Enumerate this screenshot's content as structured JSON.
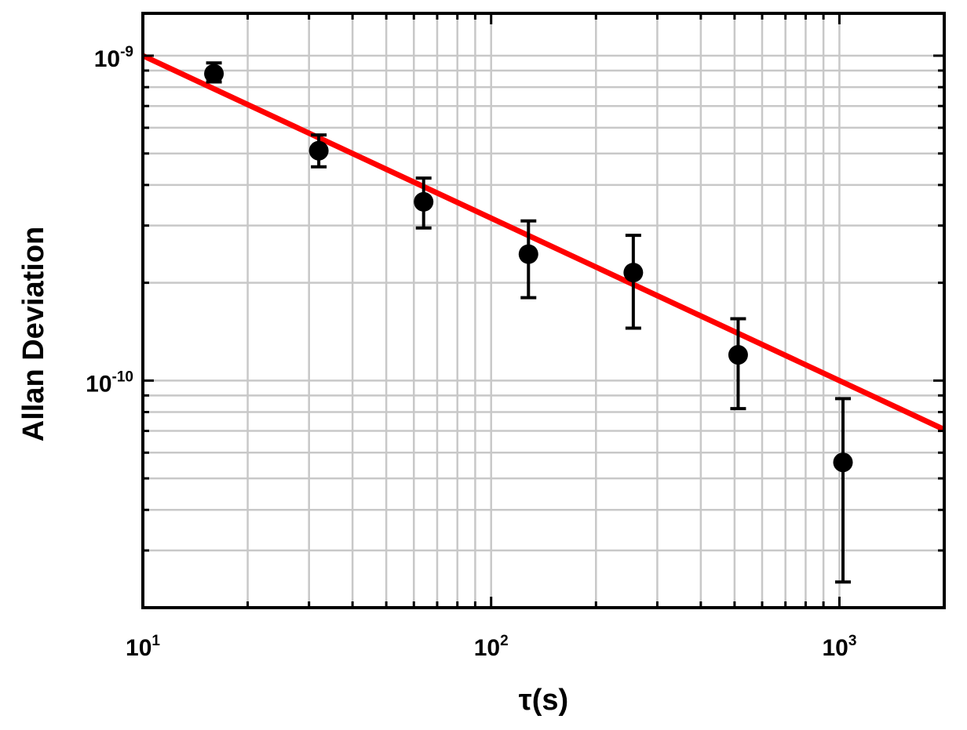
{
  "chart_data": {
    "type": "scatter",
    "xlabel": "τ(s)",
    "ylabel": "Allan Deviation",
    "x_scale": "log",
    "y_scale": "log",
    "xlim": [
      10,
      2000
    ],
    "ylim": [
      2e-11,
      1.35e-09
    ],
    "grid": true,
    "x_ticks": [
      {
        "base": "10",
        "exp": "1",
        "value": 10
      },
      {
        "base": "10",
        "exp": "2",
        "value": 100
      },
      {
        "base": "10",
        "exp": "3",
        "value": 1000
      }
    ],
    "y_ticks": [
      {
        "base": "10",
        "exp": "-10",
        "value": 1e-10
      },
      {
        "base": "10",
        "exp": "-9",
        "value": 1e-09
      }
    ],
    "points": [
      {
        "x": 16,
        "y": 8.8e-10,
        "err_low": 8.3e-10,
        "err_high": 9.5e-10
      },
      {
        "x": 32,
        "y": 5.1e-10,
        "err_low": 4.55e-10,
        "err_high": 5.7e-10
      },
      {
        "x": 64,
        "y": 3.55e-10,
        "err_low": 2.95e-10,
        "err_high": 4.2e-10
      },
      {
        "x": 128,
        "y": 2.45e-10,
        "err_low": 1.8e-10,
        "err_high": 3.1e-10
      },
      {
        "x": 256,
        "y": 2.15e-10,
        "err_low": 1.45e-10,
        "err_high": 2.8e-10
      },
      {
        "x": 512,
        "y": 1.2e-10,
        "err_low": 8.2e-11,
        "err_high": 1.55e-10
      },
      {
        "x": 1024,
        "y": 5.6e-11,
        "err_low": 2.4e-11,
        "err_high": 8.8e-11
      }
    ],
    "fit_line": {
      "x": [
        10,
        2000
      ],
      "y": [
        1e-09,
        7.07e-11
      ]
    },
    "colors": {
      "points": "#000000",
      "fit": "#ff0000",
      "grid": "#c8c8c8",
      "frame": "#000000"
    }
  }
}
